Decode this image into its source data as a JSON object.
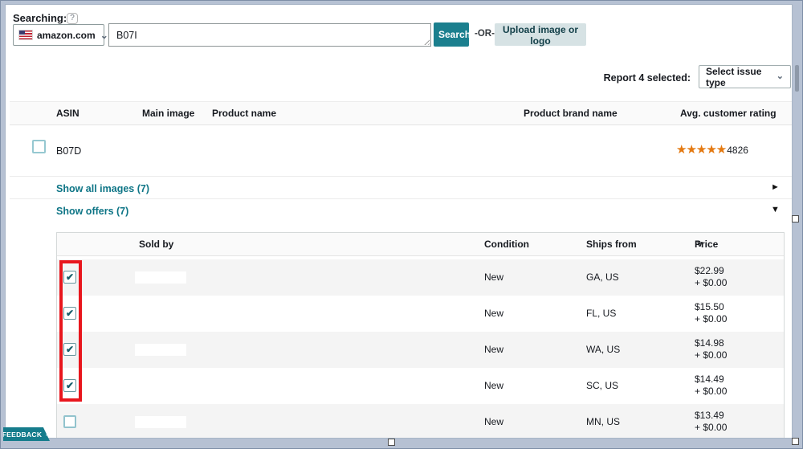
{
  "icons": {
    "help": "?",
    "chevron": "⌄",
    "sort_down": "˅",
    "right_arrow": "►",
    "down_arrow": "▼",
    "check": "✔",
    "close": "✕"
  },
  "colors": {
    "teal_button": "#1b7f8e",
    "link_teal": "#0e7586",
    "star_orange": "#e47911",
    "annotation_red": "#e8161d",
    "frame_blue": "#b6c1d3"
  },
  "search": {
    "label": "Searching:",
    "marketplace": "amazon.com",
    "query": "B07I",
    "search_button": "Search",
    "or_text": "-OR-",
    "upload_button": "Upload image or logo"
  },
  "report": {
    "label": "Report 4 selected:",
    "issue_select": "Select issue type"
  },
  "results": {
    "headers": {
      "asin": "ASIN",
      "main_image": "Main image",
      "product_name": "Product name",
      "brand": "Product brand name",
      "rating": "Avg. customer rating"
    },
    "product": {
      "asin": "B07D",
      "rating_value": 4.5,
      "rating_count": "4826",
      "stars_glyphs": "★★★★★"
    },
    "show_images": "Show all images (7)",
    "show_offers": "Show offers (7)"
  },
  "offers": {
    "headers": {
      "sold_by": "Sold by",
      "condition": "Condition",
      "ships_from": "Ships from",
      "price": "Price"
    },
    "rows": [
      {
        "checked": true,
        "condition": "New",
        "ships_from": "GA, US",
        "price": "$22.99",
        "shipping": "+ $0.00"
      },
      {
        "checked": true,
        "condition": "New",
        "ships_from": "FL, US",
        "price": "$15.50",
        "shipping": "+ $0.00"
      },
      {
        "checked": true,
        "condition": "New",
        "ships_from": "WA, US",
        "price": "$14.98",
        "shipping": "+ $0.00"
      },
      {
        "checked": true,
        "condition": "New",
        "ships_from": "SC, US",
        "price": "$14.49",
        "shipping": "+ $0.00"
      },
      {
        "checked": false,
        "condition": "New",
        "ships_from": "MN, US",
        "price": "$13.49",
        "shipping": "+ $0.00"
      }
    ]
  },
  "feedback": {
    "label": "FEEDBACK"
  }
}
